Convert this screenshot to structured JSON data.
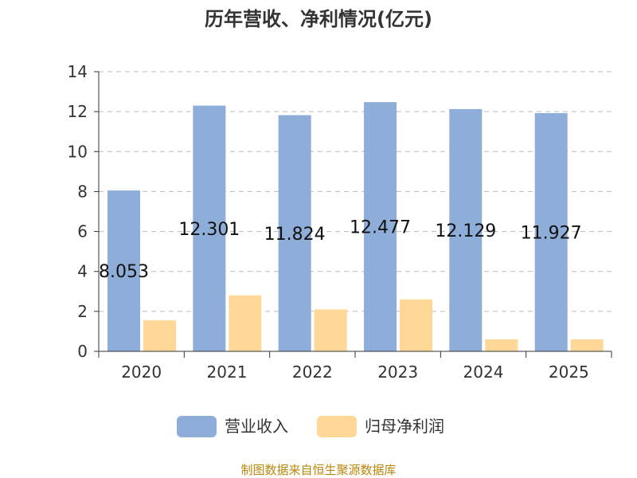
{
  "chart_data": {
    "type": "bar",
    "title": "历年营收、净利情况(亿元)",
    "categories": [
      "2020",
      "2021",
      "2022",
      "2023",
      "2024",
      "2025"
    ],
    "series": [
      {
        "name": "营业收入",
        "values": [
          8.053,
          12.301,
          11.824,
          12.477,
          12.129,
          11.927
        ],
        "color": "#8eadd9",
        "data_labels": [
          "8.053",
          "12.301",
          "11.824",
          "12.477",
          "12.129",
          "11.927"
        ]
      },
      {
        "name": "归母净利润",
        "values": [
          1.55,
          2.8,
          2.1,
          2.6,
          0.6,
          0.6
        ],
        "color": "#ffd897"
      }
    ],
    "y_ticks": [
      "0",
      "2",
      "4",
      "6",
      "8",
      "10",
      "12",
      "14"
    ],
    "ylim": [
      0,
      14
    ],
    "grid": true,
    "legend_position": "bottom"
  },
  "footer": "制图数据来自恒生聚源数据库",
  "colors": {
    "axis": "#333333",
    "grid": "#bbbbbb",
    "footer": "#b8860b"
  }
}
